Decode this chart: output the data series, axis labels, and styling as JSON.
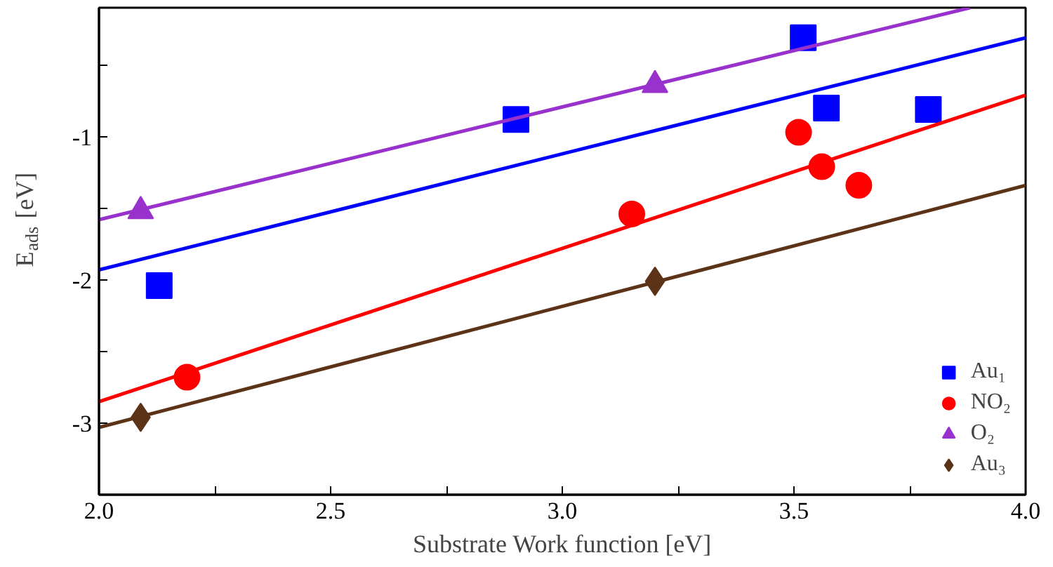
{
  "chart_data": {
    "type": "scatter",
    "xlabel": "Substrate Work function [eV]",
    "ylabel": "E$_{ads}$ [eV]",
    "xlim": [
      2.0,
      4.0
    ],
    "ylim": [
      -3.5,
      -0.1
    ],
    "xticks": [
      {
        "value": 2.0,
        "label": "2.0"
      },
      {
        "value": 2.25,
        "label": null
      },
      {
        "value": 2.5,
        "label": "2.5"
      },
      {
        "value": 2.75,
        "label": null
      },
      {
        "value": 3.0,
        "label": "3.0"
      },
      {
        "value": 3.25,
        "label": null
      },
      {
        "value": 3.5,
        "label": "3.5"
      },
      {
        "value": 3.75,
        "label": null
      },
      {
        "value": 4.0,
        "label": "4.0"
      }
    ],
    "yticks": [
      -3,
      {
        "value": -2.5,
        "label": null
      },
      -2,
      {
        "value": -1.5,
        "label": null
      },
      -1,
      {
        "value": -0.5,
        "label": null
      }
    ],
    "grid": false,
    "legend": "bottom right",
    "series": [
      {
        "name": "Au₁",
        "color": "#0000ff",
        "marker": "square",
        "x": [
          2.13,
          2.9,
          3.52,
          3.57,
          3.79
        ],
        "values": [
          -2.04,
          -0.88,
          -0.31,
          -0.8,
          -0.81
        ]
      },
      {
        "name": "NO₂",
        "color": "#ff0000",
        "marker": "circle",
        "x": [
          2.19,
          3.15,
          3.51,
          3.56,
          3.64
        ],
        "values": [
          -2.68,
          -1.54,
          -0.97,
          -1.21,
          -1.34
        ]
      },
      {
        "name": "O₂",
        "color": "#9932cc",
        "marker": "triangle",
        "x": [
          2.09,
          3.2
        ],
        "values": [
          -1.52,
          -0.64
        ]
      },
      {
        "name": "Au₃",
        "color": "#5c3317",
        "marker": "diamond",
        "x": [
          2.09,
          3.2
        ],
        "values": [
          -2.96,
          -2.01
        ]
      },
      {
        "type": "line",
        "color": "#0000ff",
        "x": [
          2.0,
          4.0
        ],
        "values": [
          -1.93,
          -0.31
        ]
      },
      {
        "type": "line",
        "color": "#ff0000",
        "x": [
          2.0,
          4.0
        ],
        "values": [
          -2.85,
          -0.71
        ]
      },
      {
        "type": "line",
        "color": "#9932cc",
        "x": [
          2.0,
          3.88
        ],
        "values": [
          -1.58,
          -0.1
        ]
      },
      {
        "type": "line",
        "color": "#5c3317",
        "x": [
          2.0,
          4.0
        ],
        "values": [
          -3.03,
          -1.34
        ]
      }
    ]
  }
}
